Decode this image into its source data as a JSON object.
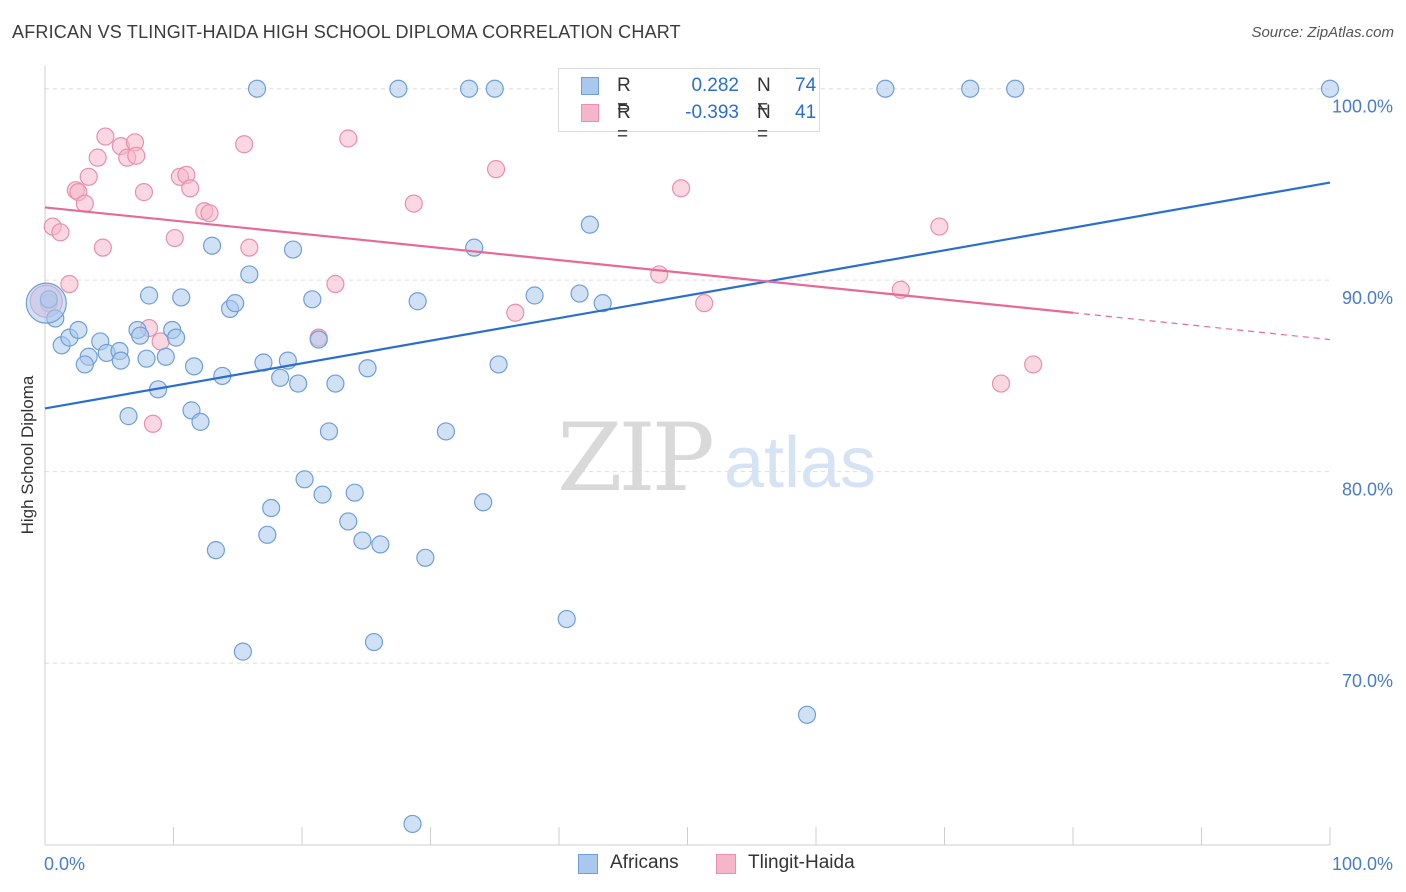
{
  "header": {
    "title": "AFRICAN VS TLINGIT-HAIDA HIGH SCHOOL DIPLOMA CORRELATION CHART",
    "source": "Source: ZipAtlas.com"
  },
  "watermark": {
    "zip": "ZIP",
    "atlas": "atlas"
  },
  "legend": {
    "rows": [
      {
        "r_label": "R =",
        "r_value": "0.282",
        "n_label": "N =",
        "n_value": "74"
      },
      {
        "r_label": "R =",
        "r_value": "-0.393",
        "n_label": "N =",
        "n_value": "41"
      }
    ]
  },
  "bottom_legend": [
    {
      "label": "Africans"
    },
    {
      "label": "Tlingit-Haida"
    }
  ],
  "colors": {
    "africans_fill": "#aac8ee",
    "africans_stroke": "#6f9fd8",
    "africans_line": "#2a6fcf",
    "tlingit_fill": "#f6b6c9",
    "tlingit_stroke": "#ea8faf",
    "tlingit_line": "#e56a95",
    "tick_text": "#4a7cc7",
    "grid": "#dddddd"
  },
  "chart_data": {
    "type": "scatter",
    "title": "AFRICAN VS TLINGIT-HAIDA HIGH SCHOOL DIPLOMA CORRELATION CHART",
    "xlabel": "",
    "ylabel": "High School Diploma",
    "xlim": [
      0,
      100
    ],
    "ylim": [
      60.5,
      101.5
    ],
    "x_tick_labels": [
      {
        "value": 0,
        "label": "0.0%"
      },
      {
        "value": 100,
        "label": "100.0%"
      }
    ],
    "y_tick_labels": [
      {
        "value": 100,
        "label": "100.0%"
      },
      {
        "value": 90,
        "label": "90.0%"
      },
      {
        "value": 80,
        "label": "80.0%"
      },
      {
        "value": 70,
        "label": "70.0%"
      }
    ],
    "grid": true,
    "legend_position": "top-center",
    "series": [
      {
        "name": "Africans",
        "r": 0.282,
        "n": 74,
        "trend": {
          "x": [
            0,
            100
          ],
          "y": [
            83.3,
            95.1
          ]
        },
        "points": [
          [
            0.3,
            89.0
          ],
          [
            0.8,
            88.0
          ],
          [
            1.3,
            86.6
          ],
          [
            1.9,
            87.0
          ],
          [
            2.6,
            87.4
          ],
          [
            3.4,
            86.0
          ],
          [
            3.1,
            85.6
          ],
          [
            4.3,
            86.8
          ],
          [
            4.8,
            86.2
          ],
          [
            5.8,
            86.3
          ],
          [
            5.9,
            85.8
          ],
          [
            6.5,
            82.9
          ],
          [
            7.2,
            87.4
          ],
          [
            7.4,
            87.1
          ],
          [
            7.9,
            85.9
          ],
          [
            8.1,
            89.2
          ],
          [
            8.8,
            84.3
          ],
          [
            9.4,
            86.0
          ],
          [
            9.9,
            87.4
          ],
          [
            10.2,
            87.0
          ],
          [
            10.6,
            89.1
          ],
          [
            11.4,
            83.2
          ],
          [
            11.6,
            85.5
          ],
          [
            12.1,
            82.6
          ],
          [
            13.0,
            91.8
          ],
          [
            13.3,
            75.9
          ],
          [
            13.8,
            85.0
          ],
          [
            14.4,
            88.5
          ],
          [
            14.8,
            88.8
          ],
          [
            15.4,
            70.6
          ],
          [
            15.9,
            90.3
          ],
          [
            16.5,
            100.0
          ],
          [
            17.0,
            85.7
          ],
          [
            17.3,
            76.7
          ],
          [
            17.6,
            78.1
          ],
          [
            18.3,
            84.9
          ],
          [
            18.9,
            85.8
          ],
          [
            19.3,
            91.6
          ],
          [
            19.7,
            84.6
          ],
          [
            20.2,
            79.6
          ],
          [
            20.8,
            89.0
          ],
          [
            21.3,
            86.9
          ],
          [
            21.6,
            78.8
          ],
          [
            22.1,
            82.1
          ],
          [
            22.6,
            84.6
          ],
          [
            23.6,
            77.4
          ],
          [
            24.1,
            78.9
          ],
          [
            24.7,
            76.4
          ],
          [
            25.1,
            85.4
          ],
          [
            25.6,
            71.1
          ],
          [
            26.1,
            76.2
          ],
          [
            27.5,
            100.0
          ],
          [
            28.6,
            61.6
          ],
          [
            29.0,
            88.9
          ],
          [
            29.6,
            75.5
          ],
          [
            31.2,
            82.1
          ],
          [
            33.0,
            100.0
          ],
          [
            33.4,
            91.7
          ],
          [
            34.1,
            78.4
          ],
          [
            35.0,
            100.0
          ],
          [
            35.3,
            85.6
          ],
          [
            38.1,
            89.2
          ],
          [
            40.6,
            72.3
          ],
          [
            41.6,
            89.3
          ],
          [
            42.4,
            92.9
          ],
          [
            43.4,
            88.8
          ],
          [
            52.3,
            100.0
          ],
          [
            55.3,
            99.2
          ],
          [
            59.3,
            67.3
          ],
          [
            65.4,
            100.0
          ],
          [
            72.0,
            100.0
          ],
          [
            75.5,
            100.0
          ],
          [
            100.0,
            100.0
          ],
          [
            0.1,
            88.8
          ]
        ]
      },
      {
        "name": "Tlingit-Haida",
        "r": -0.393,
        "n": 41,
        "trend": {
          "x": [
            0,
            80
          ],
          "y": [
            93.8,
            88.3
          ],
          "dashed_extension": {
            "x": [
              80,
              100
            ],
            "y": [
              88.3,
              86.9
            ]
          }
        },
        "points": [
          [
            0.3,
            88.8
          ],
          [
            0.6,
            92.8
          ],
          [
            1.2,
            92.5
          ],
          [
            1.9,
            89.8
          ],
          [
            2.4,
            94.7
          ],
          [
            2.6,
            94.6
          ],
          [
            3.1,
            94.0
          ],
          [
            3.4,
            95.4
          ],
          [
            4.1,
            96.4
          ],
          [
            4.5,
            91.7
          ],
          [
            4.7,
            97.5
          ],
          [
            5.9,
            97.0
          ],
          [
            6.4,
            96.4
          ],
          [
            7.0,
            97.2
          ],
          [
            7.1,
            96.5
          ],
          [
            7.7,
            94.6
          ],
          [
            8.1,
            87.5
          ],
          [
            8.4,
            82.5
          ],
          [
            9.0,
            86.8
          ],
          [
            10.1,
            92.2
          ],
          [
            10.5,
            95.4
          ],
          [
            11.0,
            95.5
          ],
          [
            11.3,
            94.8
          ],
          [
            12.4,
            93.6
          ],
          [
            12.8,
            93.5
          ],
          [
            15.5,
            97.1
          ],
          [
            15.9,
            91.7
          ],
          [
            21.3,
            87.0
          ],
          [
            22.6,
            89.8
          ],
          [
            23.6,
            97.4
          ],
          [
            28.7,
            94.0
          ],
          [
            35.1,
            95.8
          ],
          [
            36.6,
            88.3
          ],
          [
            47.8,
            90.3
          ],
          [
            49.5,
            94.8
          ],
          [
            51.3,
            88.8
          ],
          [
            66.6,
            89.5
          ],
          [
            69.6,
            92.8
          ],
          [
            74.4,
            84.6
          ],
          [
            76.9,
            85.6
          ],
          [
            0.1,
            88.9
          ]
        ]
      }
    ]
  }
}
